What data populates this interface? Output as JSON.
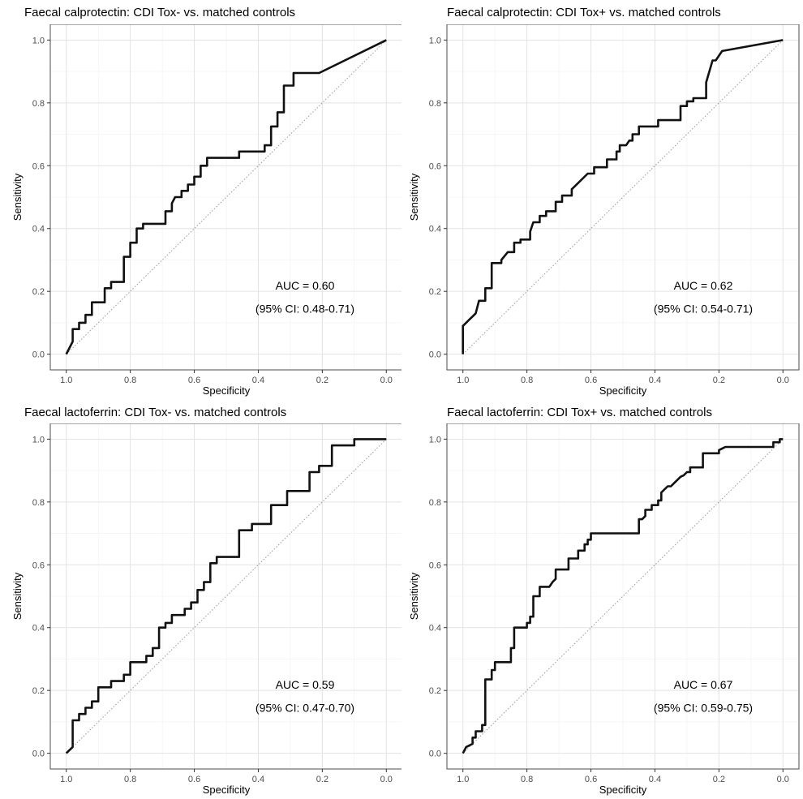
{
  "figure": {
    "panels": [
      {
        "title": "Faecal calprotectin: CDI Tox- vs. matched controls",
        "auc_text": "AUC = 0.60",
        "ci_text": "(95% CI: 0.48-0.71)"
      },
      {
        "title": "Faecal calprotectin: CDI Tox+ vs. matched controls",
        "auc_text": "AUC = 0.62",
        "ci_text": "(95% CI: 0.54-0.71)"
      },
      {
        "title": "Faecal lactoferrin: CDI Tox- vs. matched controls",
        "auc_text": "AUC = 0.59",
        "ci_text": "(95% CI: 0.47-0.70)"
      },
      {
        "title": "Faecal lactoferrin: CDI Tox+ vs. matched controls",
        "auc_text": "AUC = 0.67",
        "ci_text": "(95% CI: 0.59-0.75)"
      }
    ]
  },
  "chart_data": [
    {
      "type": "line",
      "title": "Faecal calprotectin: CDI Tox- vs. matched controls",
      "xlabel": "Specificity",
      "ylabel": "Sensitivity",
      "xlim": [
        1.0,
        0.0
      ],
      "ylim": [
        0.0,
        1.0
      ],
      "x_reversed": true,
      "xticks": [
        "1.0",
        "0.8",
        "0.6",
        "0.4",
        "0.2",
        "0.0"
      ],
      "yticks": [
        "0.0",
        "0.2",
        "0.4",
        "0.6",
        "0.8",
        "1.0"
      ],
      "grid": true,
      "reference_line": [
        [
          1.0,
          0.0
        ],
        [
          0.0,
          1.0
        ]
      ],
      "annotations": [
        "AUC = 0.60",
        "(95% CI: 0.48-0.71)"
      ],
      "series": [
        {
          "x": [
            1.0,
            0.98,
            0.98,
            0.96,
            0.96,
            0.94,
            0.94,
            0.92,
            0.92,
            0.88,
            0.88,
            0.86,
            0.86,
            0.82,
            0.82,
            0.8,
            0.8,
            0.78,
            0.78,
            0.76,
            0.76,
            0.69,
            0.69,
            0.67,
            0.67,
            0.66,
            0.64,
            0.64,
            0.62,
            0.62,
            0.6,
            0.6,
            0.58,
            0.58,
            0.56,
            0.56,
            0.46,
            0.46,
            0.38,
            0.38,
            0.36,
            0.36,
            0.34,
            0.34,
            0.32,
            0.32,
            0.29,
            0.29,
            0.26,
            0.26,
            0.21,
            0.0
          ],
          "y": [
            0.0,
            0.04,
            0.08,
            0.08,
            0.1,
            0.1,
            0.125,
            0.125,
            0.165,
            0.165,
            0.21,
            0.21,
            0.23,
            0.23,
            0.31,
            0.31,
            0.355,
            0.355,
            0.4,
            0.4,
            0.415,
            0.415,
            0.455,
            0.455,
            0.48,
            0.5,
            0.5,
            0.52,
            0.52,
            0.54,
            0.54,
            0.565,
            0.565,
            0.6,
            0.6,
            0.625,
            0.625,
            0.645,
            0.645,
            0.665,
            0.665,
            0.725,
            0.725,
            0.77,
            0.77,
            0.855,
            0.855,
            0.895,
            0.895,
            0.895,
            0.895,
            1.0
          ]
        }
      ]
    },
    {
      "type": "line",
      "title": "Faecal calprotectin: CDI Tox+ vs. matched controls",
      "xlabel": "Specificity",
      "ylabel": "Sensitivity",
      "xlim": [
        1.0,
        0.0
      ],
      "ylim": [
        0.0,
        1.0
      ],
      "x_reversed": true,
      "xticks": [
        "1.0",
        "0.8",
        "0.6",
        "0.4",
        "0.2",
        "0.0"
      ],
      "yticks": [
        "0.0",
        "0.2",
        "0.4",
        "0.6",
        "0.8",
        "1.0"
      ],
      "grid": true,
      "reference_line": [
        [
          1.0,
          0.0
        ],
        [
          0.0,
          1.0
        ]
      ],
      "annotations": [
        "AUC = 0.62",
        "(95% CI: 0.54-0.71)"
      ],
      "series": [
        {
          "x": [
            1.0,
            1.0,
            0.99,
            0.98,
            0.97,
            0.96,
            0.95,
            0.93,
            0.93,
            0.91,
            0.91,
            0.88,
            0.88,
            0.86,
            0.84,
            0.84,
            0.82,
            0.82,
            0.79,
            0.79,
            0.78,
            0.76,
            0.76,
            0.74,
            0.74,
            0.71,
            0.71,
            0.69,
            0.69,
            0.66,
            0.66,
            0.61,
            0.61,
            0.59,
            0.59,
            0.55,
            0.55,
            0.52,
            0.52,
            0.51,
            0.51,
            0.49,
            0.48,
            0.47,
            0.47,
            0.45,
            0.45,
            0.43,
            0.43,
            0.39,
            0.39,
            0.32,
            0.32,
            0.3,
            0.3,
            0.28,
            0.28,
            0.24,
            0.24,
            0.22,
            0.21,
            0.19,
            0.0
          ],
          "y": [
            0.0,
            0.09,
            0.1,
            0.11,
            0.12,
            0.13,
            0.17,
            0.17,
            0.21,
            0.21,
            0.29,
            0.29,
            0.3,
            0.325,
            0.325,
            0.355,
            0.355,
            0.365,
            0.365,
            0.39,
            0.42,
            0.42,
            0.44,
            0.44,
            0.455,
            0.455,
            0.485,
            0.485,
            0.505,
            0.505,
            0.525,
            0.575,
            0.575,
            0.575,
            0.595,
            0.595,
            0.62,
            0.62,
            0.645,
            0.645,
            0.665,
            0.665,
            0.68,
            0.68,
            0.7,
            0.7,
            0.725,
            0.725,
            0.725,
            0.725,
            0.745,
            0.745,
            0.79,
            0.79,
            0.805,
            0.805,
            0.815,
            0.815,
            0.865,
            0.935,
            0.935,
            0.965,
            1.0
          ]
        }
      ]
    },
    {
      "type": "line",
      "title": "Faecal lactoferrin: CDI Tox- vs. matched controls",
      "xlabel": "Specificity",
      "ylabel": "Sensitivity",
      "xlim": [
        1.0,
        0.0
      ],
      "ylim": [
        0.0,
        1.0
      ],
      "x_reversed": true,
      "xticks": [
        "1.0",
        "0.8",
        "0.6",
        "0.4",
        "0.2",
        "0.0"
      ],
      "yticks": [
        "0.0",
        "0.2",
        "0.4",
        "0.6",
        "0.8",
        "1.0"
      ],
      "grid": true,
      "reference_line": [
        [
          1.0,
          0.0
        ],
        [
          0.0,
          1.0
        ]
      ],
      "annotations": [
        "AUC = 0.59",
        "(95% CI: 0.47-0.70)"
      ],
      "series": [
        {
          "x": [
            1.0,
            0.98,
            0.98,
            0.96,
            0.96,
            0.94,
            0.94,
            0.92,
            0.92,
            0.9,
            0.9,
            0.86,
            0.86,
            0.82,
            0.82,
            0.8,
            0.8,
            0.75,
            0.75,
            0.73,
            0.73,
            0.71,
            0.71,
            0.69,
            0.69,
            0.67,
            0.67,
            0.63,
            0.63,
            0.61,
            0.61,
            0.59,
            0.59,
            0.57,
            0.57,
            0.55,
            0.55,
            0.53,
            0.53,
            0.46,
            0.46,
            0.42,
            0.42,
            0.36,
            0.36,
            0.34,
            0.34,
            0.31,
            0.31,
            0.24,
            0.24,
            0.21,
            0.21,
            0.17,
            0.17,
            0.13,
            0.13,
            0.1,
            0.1,
            0.06,
            0.0
          ],
          "y": [
            0.0,
            0.02,
            0.105,
            0.105,
            0.125,
            0.125,
            0.145,
            0.145,
            0.165,
            0.165,
            0.21,
            0.21,
            0.23,
            0.23,
            0.25,
            0.25,
            0.29,
            0.29,
            0.31,
            0.31,
            0.335,
            0.335,
            0.4,
            0.4,
            0.415,
            0.415,
            0.44,
            0.44,
            0.46,
            0.46,
            0.48,
            0.48,
            0.52,
            0.52,
            0.545,
            0.545,
            0.605,
            0.605,
            0.625,
            0.625,
            0.71,
            0.71,
            0.73,
            0.73,
            0.79,
            0.79,
            0.79,
            0.79,
            0.835,
            0.835,
            0.895,
            0.895,
            0.915,
            0.915,
            0.98,
            0.98,
            0.98,
            0.98,
            1.0,
            1.0,
            1.0
          ]
        }
      ]
    },
    {
      "type": "line",
      "title": "Faecal lactoferrin: CDI Tox+ vs. matched controls",
      "xlabel": "Specificity",
      "ylabel": "Sensitivity",
      "xlim": [
        1.0,
        0.0
      ],
      "ylim": [
        0.0,
        1.0
      ],
      "x_reversed": true,
      "xticks": [
        "1.0",
        "0.8",
        "0.6",
        "0.4",
        "0.2",
        "0.0"
      ],
      "yticks": [
        "0.0",
        "0.2",
        "0.4",
        "0.6",
        "0.8",
        "1.0"
      ],
      "grid": true,
      "reference_line": [
        [
          1.0,
          0.0
        ],
        [
          0.0,
          1.0
        ]
      ],
      "annotations": [
        "AUC = 0.67",
        "(95% CI: 0.59-0.75)"
      ],
      "series": [
        {
          "x": [
            1.0,
            0.99,
            0.97,
            0.97,
            0.96,
            0.96,
            0.94,
            0.94,
            0.93,
            0.93,
            0.91,
            0.91,
            0.9,
            0.9,
            0.88,
            0.88,
            0.85,
            0.85,
            0.84,
            0.84,
            0.8,
            0.8,
            0.79,
            0.79,
            0.78,
            0.78,
            0.76,
            0.76,
            0.73,
            0.72,
            0.71,
            0.71,
            0.67,
            0.67,
            0.64,
            0.64,
            0.62,
            0.62,
            0.61,
            0.61,
            0.6,
            0.6,
            0.45,
            0.45,
            0.44,
            0.43,
            0.43,
            0.41,
            0.41,
            0.39,
            0.39,
            0.38,
            0.38,
            0.36,
            0.35,
            0.34,
            0.33,
            0.32,
            0.31,
            0.3,
            0.29,
            0.29,
            0.28,
            0.28,
            0.25,
            0.25,
            0.2,
            0.2,
            0.18,
            0.17,
            0.16,
            0.16,
            0.03,
            0.03,
            0.01,
            0.01,
            0.0
          ],
          "y": [
            0.0,
            0.02,
            0.03,
            0.05,
            0.05,
            0.07,
            0.07,
            0.09,
            0.09,
            0.235,
            0.235,
            0.265,
            0.265,
            0.29,
            0.29,
            0.29,
            0.29,
            0.335,
            0.335,
            0.4,
            0.4,
            0.415,
            0.415,
            0.435,
            0.435,
            0.5,
            0.5,
            0.53,
            0.53,
            0.545,
            0.555,
            0.585,
            0.585,
            0.62,
            0.62,
            0.645,
            0.645,
            0.665,
            0.665,
            0.68,
            0.68,
            0.7,
            0.7,
            0.745,
            0.745,
            0.755,
            0.775,
            0.775,
            0.79,
            0.79,
            0.805,
            0.805,
            0.83,
            0.85,
            0.85,
            0.86,
            0.87,
            0.88,
            0.885,
            0.895,
            0.895,
            0.91,
            0.91,
            0.91,
            0.91,
            0.955,
            0.955,
            0.965,
            0.975,
            0.975,
            0.975,
            0.975,
            0.975,
            0.99,
            0.99,
            1.0,
            1.0
          ]
        }
      ]
    }
  ]
}
